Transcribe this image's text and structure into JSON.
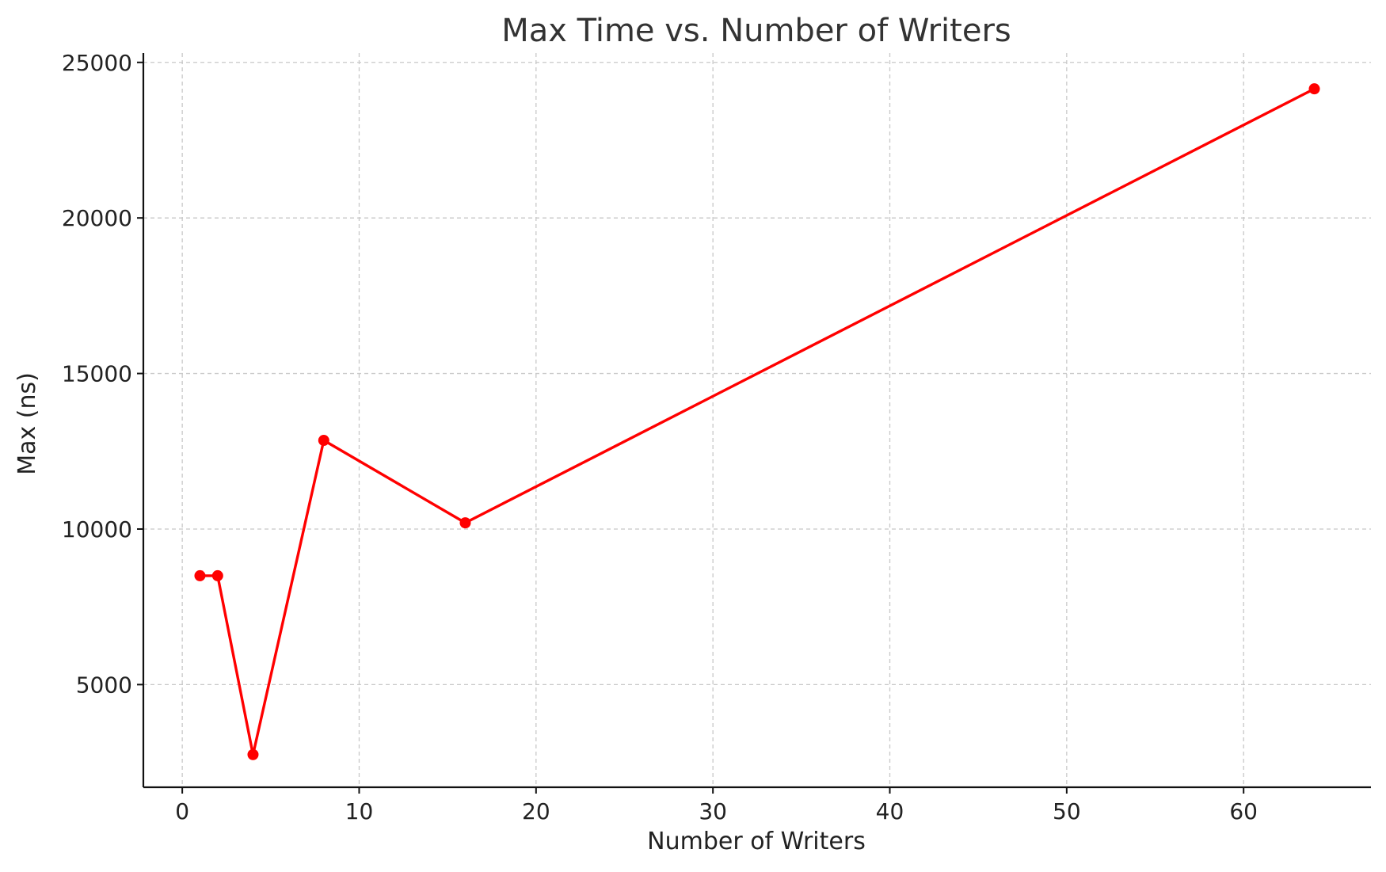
{
  "chart_data": {
    "type": "line",
    "title": "Max Time vs. Number of Writers",
    "xlabel": "Number of Writers",
    "ylabel": "Max (ns)",
    "xlim": [
      -2.2,
      67.2
    ],
    "ylim": [
      1700,
      25300
    ],
    "xticks": [
      0,
      10,
      20,
      30,
      40,
      50,
      60
    ],
    "yticks": [
      5000,
      10000,
      15000,
      20000,
      25000
    ],
    "grid": true,
    "colors": {
      "line": "#ff0000",
      "grid": "#c8c8c8",
      "axis": "#111111",
      "text": "#222222",
      "title": "#333333"
    },
    "series": [
      {
        "x": [
          1,
          2,
          4,
          8,
          16,
          64
        ],
        "y": [
          8500,
          8500,
          2750,
          12850,
          10200,
          24150
        ]
      }
    ]
  }
}
